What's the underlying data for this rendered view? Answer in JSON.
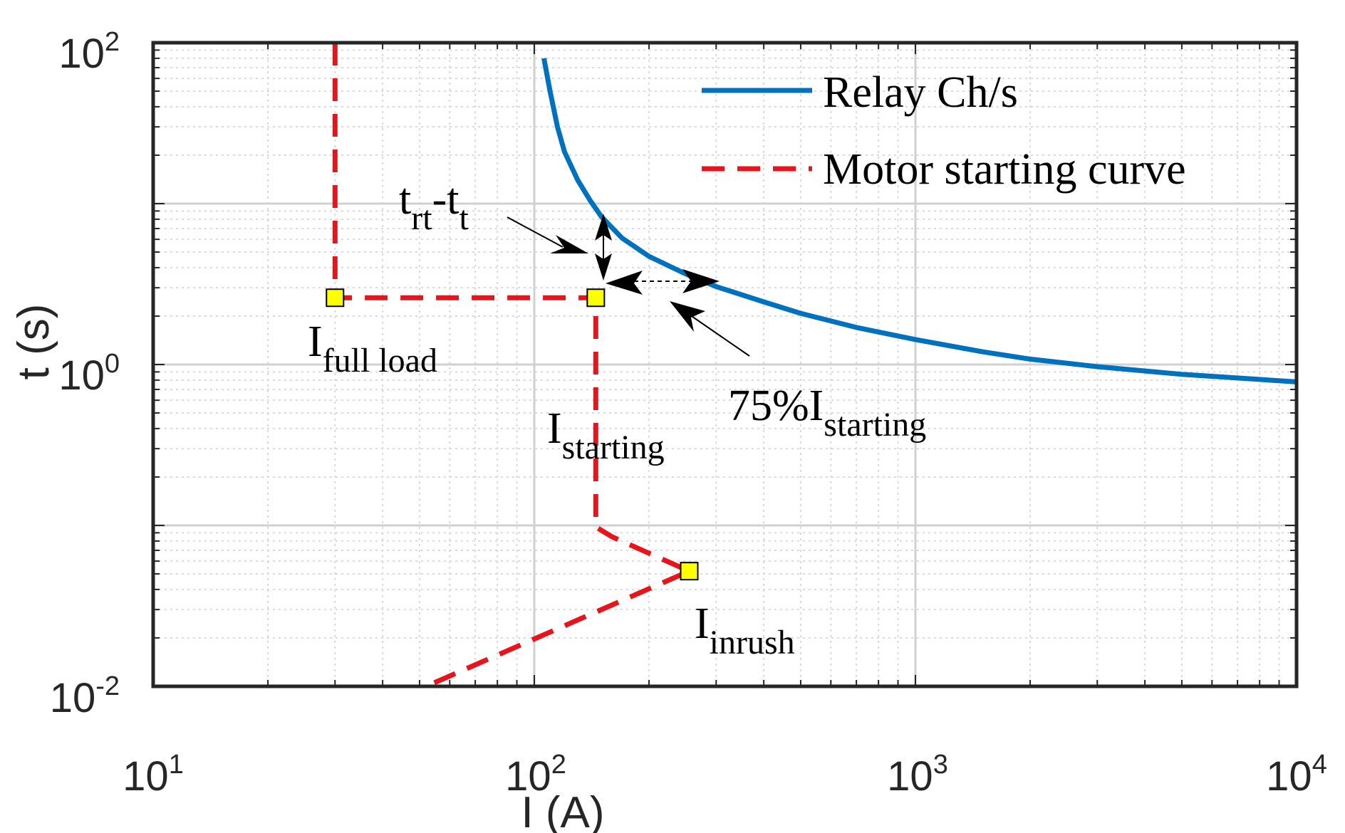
{
  "chart_data": {
    "type": "line",
    "title": "",
    "xlabel": "I (A)",
    "ylabel": "t (s)",
    "xscale": "log",
    "yscale": "log",
    "xlim": [
      10,
      10000
    ],
    "ylim": [
      0.01,
      100
    ],
    "grid": true,
    "legend_position": "top-right",
    "x_ticks": [
      {
        "base": "10",
        "exp": "1",
        "value": 10
      },
      {
        "base": "10",
        "exp": "2",
        "value": 100
      },
      {
        "base": "10",
        "exp": "3",
        "value": 1000
      },
      {
        "base": "10",
        "exp": "4",
        "value": 10000
      }
    ],
    "y_ticks": [
      {
        "base": "10",
        "exp": "-2",
        "value": 0.01
      },
      {
        "base": "10",
        "exp": "0",
        "value": 1
      },
      {
        "base": "10",
        "exp": "2",
        "value": 100
      }
    ],
    "series": [
      {
        "name": "Relay Ch/s",
        "color": "#0072bd",
        "style": "solid",
        "x": [
          106,
          110,
          115,
          120,
          130,
          140,
          150,
          170,
          200,
          250,
          300,
          400,
          500,
          700,
          1000,
          1500,
          2000,
          3000,
          5000,
          10000
        ],
        "y": [
          80,
          50,
          30,
          21,
          14,
          10.5,
          8.3,
          6.1,
          4.7,
          3.65,
          3.05,
          2.45,
          2.08,
          1.7,
          1.43,
          1.2,
          1.08,
          0.97,
          0.87,
          0.78
        ]
      },
      {
        "name": "Motor starting curve",
        "color": "#e8141b",
        "style": "dashed",
        "x": [
          30,
          30,
          145,
          145,
          160,
          255,
          52
        ],
        "y": [
          100,
          2.6,
          2.6,
          0.098,
          0.085,
          0.052,
          0.01
        ]
      }
    ],
    "markers": [
      {
        "name": "full-load-point",
        "x": 30,
        "y": 2.6
      },
      {
        "name": "starting-point",
        "x": 145,
        "y": 2.6
      },
      {
        "name": "inrush-point",
        "x": 255,
        "y": 0.052
      }
    ],
    "annotations": {
      "full_load": {
        "main": "I",
        "sub": "full load"
      },
      "starting": {
        "main": "I",
        "sub": "starting"
      },
      "inrush": {
        "main": "I",
        "sub": "inrush"
      },
      "pct_starting": {
        "main": "75%I",
        "sub": "starting"
      },
      "time_diff": {
        "t1": "t",
        "sub1": "rt",
        "dash": "-t",
        "sub2": "t"
      }
    }
  },
  "colors": {
    "relay": "#0072bd",
    "motor": "#e8141b",
    "marker_fill": "#ffff00",
    "grid": "#d9d9d9",
    "axis": "#262626"
  }
}
